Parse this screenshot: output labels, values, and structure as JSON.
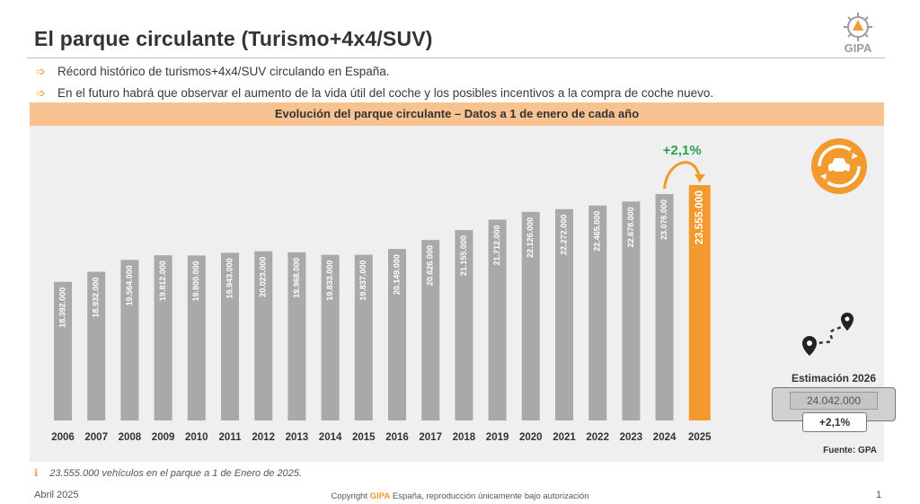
{
  "slide": {
    "title": "El parque circulante (Turismo+4x4/SUV)",
    "logo_text": "GIPA",
    "bullets": [
      "Récord histórico de turismos+4x4/SUV circulando en España.",
      "En el futuro habrá que observar el aumento de la vida útil del coche y los posibles incentivos a la compra de coche nuevo."
    ],
    "banner": "Evolución del parque circulante – Datos a 1 de enero de cada año",
    "source": "Fuente: GPA",
    "estimation": {
      "label": "Estimación 2026",
      "value": "24.042.000",
      "pct": "+2,1%"
    },
    "footnote": "23.555.000 vehículos en el parque a 1 de Enero de 2025.",
    "footer": {
      "date": "Abril 2025",
      "copyright_prefix": "Copyright ",
      "copyright_brand": "GIPA",
      "copyright_suffix": " España, reproducción únicamente bajo autorización",
      "page": "1"
    }
  },
  "colors": {
    "bar": "#a9a9a9",
    "highlight": "#f29a2e",
    "growth": "#2e9e4f",
    "panel": "#efefef",
    "banner": "#f8c291"
  },
  "icons": [
    "chevron-bullet-icon",
    "recycle-car-icon",
    "route-pin-icon",
    "footnote-info-icon"
  ],
  "chart_data": {
    "type": "bar",
    "categories": [
      "2006",
      "2007",
      "2008",
      "2009",
      "2010",
      "2011",
      "2012",
      "2013",
      "2014",
      "2015",
      "2016",
      "2017",
      "2018",
      "2019",
      "2020",
      "2021",
      "2022",
      "2023",
      "2024",
      "2025"
    ],
    "values": [
      18392000,
      18932000,
      19564000,
      19812000,
      19800000,
      19943000,
      20023000,
      19968000,
      19833000,
      19837000,
      20149000,
      20626000,
      21155000,
      21712000,
      22126000,
      22272000,
      22465000,
      22678000,
      23076000,
      23555000
    ],
    "labels": [
      "18.392.000",
      "18.932.000",
      "19.564.000",
      "19.812.000",
      "19.800.000",
      "19.943.000",
      "20.023.000",
      "19.968.000",
      "19.833.000",
      "19.837.000",
      "20.149.000",
      "20.626.000",
      "21.155.000",
      "21.712.000",
      "22.126.000",
      "22.272.000",
      "22.465.000",
      "22.678.000",
      "23.076.000",
      "23.555.000"
    ],
    "highlight_index": 19,
    "growth_annotation": "+2,1%",
    "title": "Evolución del parque circulante – Datos a 1 de enero de cada año",
    "xlabel": "",
    "ylabel": "",
    "ylim": [
      11000000,
      23555000
    ],
    "grid": false,
    "legend": "none"
  }
}
